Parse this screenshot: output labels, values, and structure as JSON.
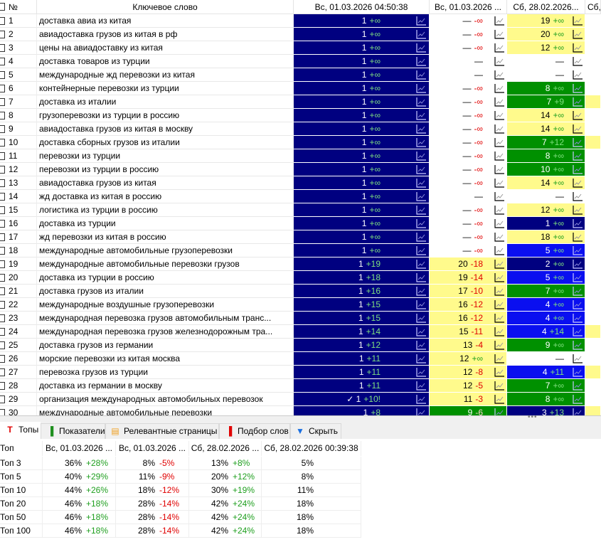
{
  "grid": {
    "headers": {
      "num": "№",
      "keyword": "Ключевое слово",
      "c1": "Вс, 01.03.2026 04:50:38",
      "c2": "Вс, 01.03.2026 ...",
      "c3": "Сб, 28.02.2026...",
      "c4": "Сб,"
    },
    "colors": {
      "navy": "#000080",
      "blue": "#0a0ff0",
      "green": "#009000",
      "yellow": "#fffa8c",
      "white": "#ffffff"
    },
    "rows": [
      {
        "n": "1",
        "kw": "доставка авиа из китая",
        "c1": [
          "1",
          "+∞",
          "navy"
        ],
        "c2": [
          "—",
          "-∞",
          "white"
        ],
        "c3": [
          "19",
          "+∞",
          "yellow"
        ],
        "c4": "white"
      },
      {
        "n": "2",
        "kw": "авиадоставка грузов из китая в рф",
        "c1": [
          "1",
          "+∞",
          "navy"
        ],
        "c2": [
          "—",
          "-∞",
          "white"
        ],
        "c3": [
          "20",
          "+∞",
          "yellow"
        ],
        "c4": "white"
      },
      {
        "n": "3",
        "kw": "цены на авиадоставку из китая",
        "c1": [
          "1",
          "+∞",
          "navy"
        ],
        "c2": [
          "—",
          "-∞",
          "white"
        ],
        "c3": [
          "12",
          "+∞",
          "yellow"
        ],
        "c4": "white"
      },
      {
        "n": "4",
        "kw": "доставка товаров из турции",
        "c1": [
          "1",
          "+∞",
          "navy"
        ],
        "c2": [
          "—",
          "",
          "white"
        ],
        "c3": [
          "—",
          "",
          "white"
        ],
        "c4": "white"
      },
      {
        "n": "5",
        "kw": "международные жд перевозки из китая",
        "c1": [
          "1",
          "+∞",
          "navy"
        ],
        "c2": [
          "—",
          "",
          "white"
        ],
        "c3": [
          "—",
          "",
          "white"
        ],
        "c4": "white"
      },
      {
        "n": "6",
        "kw": "контейнерные перевозки из турции",
        "c1": [
          "1",
          "+∞",
          "navy"
        ],
        "c2": [
          "—",
          "-∞",
          "white"
        ],
        "c3": [
          "8",
          "+∞",
          "green"
        ],
        "c4": "white"
      },
      {
        "n": "7",
        "kw": "доставка из италии",
        "c1": [
          "1",
          "+∞",
          "navy"
        ],
        "c2": [
          "—",
          "-∞",
          "white"
        ],
        "c3": [
          "7",
          "+9",
          "green"
        ],
        "c4": "yellow"
      },
      {
        "n": "8",
        "kw": "грузоперевозки из турции в россию",
        "c1": [
          "1",
          "+∞",
          "navy"
        ],
        "c2": [
          "—",
          "-∞",
          "white"
        ],
        "c3": [
          "14",
          "+∞",
          "yellow"
        ],
        "c4": "white"
      },
      {
        "n": "9",
        "kw": "авиадоставка грузов из китая в москву",
        "c1": [
          "1",
          "+∞",
          "navy"
        ],
        "c2": [
          "—",
          "-∞",
          "white"
        ],
        "c3": [
          "14",
          "+∞",
          "yellow"
        ],
        "c4": "white"
      },
      {
        "n": "10",
        "kw": "доставка сборных грузов из италии",
        "c1": [
          "1",
          "+∞",
          "navy"
        ],
        "c2": [
          "—",
          "-∞",
          "white"
        ],
        "c3": [
          "7",
          "+12",
          "green"
        ],
        "c4": "yellow"
      },
      {
        "n": "11",
        "kw": "перевозки из турции",
        "c1": [
          "1",
          "+∞",
          "navy"
        ],
        "c2": [
          "—",
          "-∞",
          "white"
        ],
        "c3": [
          "8",
          "+∞",
          "green"
        ],
        "c4": "white"
      },
      {
        "n": "12",
        "kw": "перевозки из турции в россию",
        "c1": [
          "1",
          "+∞",
          "navy"
        ],
        "c2": [
          "—",
          "-∞",
          "white"
        ],
        "c3": [
          "10",
          "+∞",
          "green"
        ],
        "c4": "white"
      },
      {
        "n": "13",
        "kw": "авиадоставка грузов из китая",
        "c1": [
          "1",
          "+∞",
          "navy"
        ],
        "c2": [
          "—",
          "-∞",
          "white"
        ],
        "c3": [
          "14",
          "+∞",
          "yellow"
        ],
        "c4": "white"
      },
      {
        "n": "14",
        "kw": "жд доставка из китая в россию",
        "c1": [
          "1",
          "+∞",
          "navy"
        ],
        "c2": [
          "—",
          "",
          "white"
        ],
        "c3": [
          "—",
          "",
          "white"
        ],
        "c4": "white"
      },
      {
        "n": "15",
        "kw": "логистика из турции в россию",
        "c1": [
          "1",
          "+∞",
          "navy"
        ],
        "c2": [
          "—",
          "-∞",
          "white"
        ],
        "c3": [
          "12",
          "+∞",
          "yellow"
        ],
        "c4": "white"
      },
      {
        "n": "16",
        "kw": "доставка из турции",
        "c1": [
          "1",
          "+∞",
          "navy"
        ],
        "c2": [
          "—",
          "-∞",
          "white"
        ],
        "c3": [
          "1",
          "+∞",
          "navy"
        ],
        "c4": "white"
      },
      {
        "n": "17",
        "kw": "жд перевозки из китая в россию",
        "c1": [
          "1",
          "+∞",
          "navy"
        ],
        "c2": [
          "—",
          "-∞",
          "white"
        ],
        "c3": [
          "18",
          "+∞",
          "yellow"
        ],
        "c4": "white"
      },
      {
        "n": "18",
        "kw": "международные автомобильные грузоперевозки",
        "c1": [
          "1",
          "+∞",
          "navy"
        ],
        "c2": [
          "—",
          "-∞",
          "white"
        ],
        "c3": [
          "5",
          "+∞",
          "blue"
        ],
        "c4": "white"
      },
      {
        "n": "19",
        "kw": "международные автомобильные перевозки грузов",
        "c1": [
          "1",
          "+19",
          "navy"
        ],
        "c2": [
          "20",
          "-18",
          "yellow"
        ],
        "c3": [
          "2",
          "+∞",
          "navy"
        ],
        "c4": "white"
      },
      {
        "n": "20",
        "kw": "доставка из турции в россию",
        "c1": [
          "1",
          "+18",
          "navy"
        ],
        "c2": [
          "19",
          "-14",
          "yellow"
        ],
        "c3": [
          "5",
          "+∞",
          "blue"
        ],
        "c4": "white"
      },
      {
        "n": "21",
        "kw": "доставка грузов из италии",
        "c1": [
          "1",
          "+16",
          "navy"
        ],
        "c2": [
          "17",
          "-10",
          "yellow"
        ],
        "c3": [
          "7",
          "+∞",
          "green"
        ],
        "c4": "white"
      },
      {
        "n": "22",
        "kw": "международные воздушные грузоперевозки",
        "c1": [
          "1",
          "+15",
          "navy"
        ],
        "c2": [
          "16",
          "-12",
          "yellow"
        ],
        "c3": [
          "4",
          "+∞",
          "blue"
        ],
        "c4": "white"
      },
      {
        "n": "23",
        "kw": "международная перевозка грузов автомобильным транс...",
        "c1": [
          "1",
          "+15",
          "navy"
        ],
        "c2": [
          "16",
          "-12",
          "yellow"
        ],
        "c3": [
          "4",
          "+∞",
          "blue"
        ],
        "c4": "white"
      },
      {
        "n": "24",
        "kw": "международная перевозка грузов железнодорожным тра...",
        "c1": [
          "1",
          "+14",
          "navy"
        ],
        "c2": [
          "15",
          "-11",
          "yellow"
        ],
        "c3": [
          "4",
          "+14",
          "blue"
        ],
        "c4": "yellow"
      },
      {
        "n": "25",
        "kw": "доставка грузов из германии",
        "c1": [
          "1",
          "+12",
          "navy"
        ],
        "c2": [
          "13",
          "-4",
          "yellow"
        ],
        "c3": [
          "9",
          "+∞",
          "green"
        ],
        "c4": "white"
      },
      {
        "n": "26",
        "kw": "морские перевозки из китая москва",
        "c1": [
          "1",
          "+11",
          "navy"
        ],
        "c2": [
          "12",
          "+∞",
          "yellow"
        ],
        "c3": [
          "—",
          "",
          "white"
        ],
        "c4": "white"
      },
      {
        "n": "27",
        "kw": "перевозка грузов из турции",
        "c1": [
          "1",
          "+11",
          "navy"
        ],
        "c2": [
          "12",
          "-8",
          "yellow"
        ],
        "c3": [
          "4",
          "+11",
          "blue"
        ],
        "c4": "yellow"
      },
      {
        "n": "28",
        "kw": "доставка из германии в москву",
        "c1": [
          "1",
          "+11",
          "navy"
        ],
        "c2": [
          "12",
          "-5",
          "yellow"
        ],
        "c3": [
          "7",
          "+∞",
          "green"
        ],
        "c4": "white"
      },
      {
        "n": "29",
        "kw": "организация международных автомобильных перевозок",
        "c1": [
          "✓ 1",
          "+10!",
          "navy"
        ],
        "c2": [
          "11",
          "-3",
          "yellow"
        ],
        "c3": [
          "8",
          "+∞",
          "green"
        ],
        "c4": "white"
      },
      {
        "n": "30",
        "kw": "международные автомобильные перевозки",
        "c1": [
          "1",
          "+8",
          "navy"
        ],
        "c2": [
          "9",
          "-6",
          "green"
        ],
        "c3": [
          "3",
          "+13",
          "navy"
        ],
        "c4": "yellow"
      }
    ]
  },
  "tabs": [
    {
      "label": "Топы",
      "icon": "T",
      "icon_name": "tops-icon",
      "color": "#e00000",
      "active": true
    },
    {
      "label": "Показатели",
      "icon": "▐",
      "icon_name": "bar-chart-icon",
      "color": "#1f8f1f",
      "active": false
    },
    {
      "label": "Релевантные страницы",
      "icon": "▤",
      "icon_name": "document-icon",
      "color": "#f0a020",
      "active": false
    },
    {
      "label": "Подбор слов",
      "icon": "▐",
      "icon_name": "bar-chart-red-icon",
      "color": "#e00000",
      "active": false
    },
    {
      "label": "Скрыть",
      "icon": "▼",
      "icon_name": "hide-arrow-icon",
      "color": "#1a6fe0",
      "active": false
    }
  ],
  "tops": {
    "headers": [
      "Топ",
      "Вс, 01.03.2026 ...",
      "Вс, 01.03.2026 ...",
      "Сб, 28.02.2026 ...",
      "Сб, 28.02.2026 00:39:38"
    ],
    "rows": [
      {
        "label": "Топ 3",
        "cells": [
          [
            "36%",
            "+28%"
          ],
          [
            "8%",
            "-5%"
          ],
          [
            "13%",
            "+8%"
          ],
          [
            "5%",
            ""
          ]
        ]
      },
      {
        "label": "Топ 5",
        "cells": [
          [
            "40%",
            "+29%"
          ],
          [
            "11%",
            "-9%"
          ],
          [
            "20%",
            "+12%"
          ],
          [
            "8%",
            ""
          ]
        ]
      },
      {
        "label": "Топ 10",
        "cells": [
          [
            "44%",
            "+26%"
          ],
          [
            "18%",
            "-12%"
          ],
          [
            "30%",
            "+19%"
          ],
          [
            "11%",
            ""
          ]
        ]
      },
      {
        "label": "Топ 20",
        "cells": [
          [
            "46%",
            "+18%"
          ],
          [
            "28%",
            "-14%"
          ],
          [
            "42%",
            "+24%"
          ],
          [
            "18%",
            ""
          ]
        ]
      },
      {
        "label": "Топ 50",
        "cells": [
          [
            "46%",
            "+18%"
          ],
          [
            "28%",
            "-14%"
          ],
          [
            "42%",
            "+24%"
          ],
          [
            "18%",
            ""
          ]
        ]
      },
      {
        "label": "Топ 100",
        "cells": [
          [
            "46%",
            "+18%"
          ],
          [
            "28%",
            "-14%"
          ],
          [
            "42%",
            "+24%"
          ],
          [
            "18%",
            ""
          ]
        ]
      }
    ]
  }
}
